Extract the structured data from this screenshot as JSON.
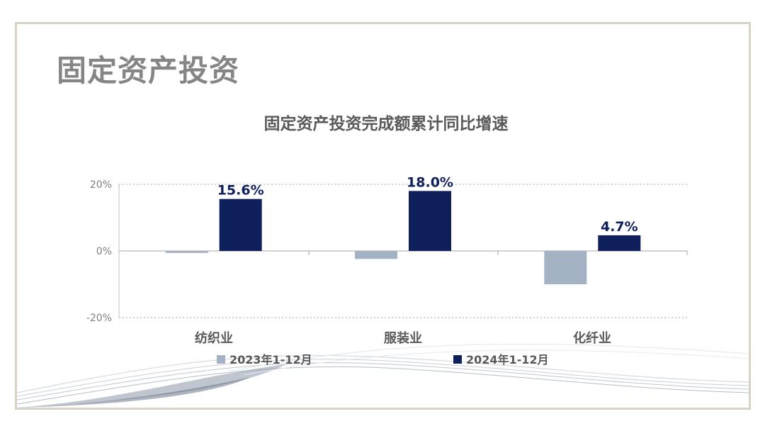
{
  "slide": {
    "title": "固定资产投资"
  },
  "colors": {
    "series_2023": "#a4b3c4",
    "series_2024": "#0f1f5c",
    "label_2024": "#0f1f5c",
    "axis": "#a6a6a6",
    "text": "#595959"
  },
  "chart_data": {
    "type": "bar",
    "title": "固定资产投资完成额累计同比增速",
    "categories": [
      "纺织业",
      "服装业",
      "化纤业"
    ],
    "series": [
      {
        "name": "2023年1-12月",
        "values": [
          -0.6,
          -2.4,
          -10.0
        ],
        "data_labels": [
          null,
          null,
          null
        ]
      },
      {
        "name": "2024年1-12月",
        "values": [
          15.6,
          18.0,
          4.7
        ],
        "data_labels": [
          "15.6%",
          "18.0%",
          "4.7%"
        ]
      }
    ],
    "y_ticks": [
      "20%",
      "0%",
      "-20%"
    ],
    "ylim": [
      -20,
      20
    ],
    "xlabel": "",
    "ylabel": "",
    "grid": true,
    "legend": "bottom"
  }
}
